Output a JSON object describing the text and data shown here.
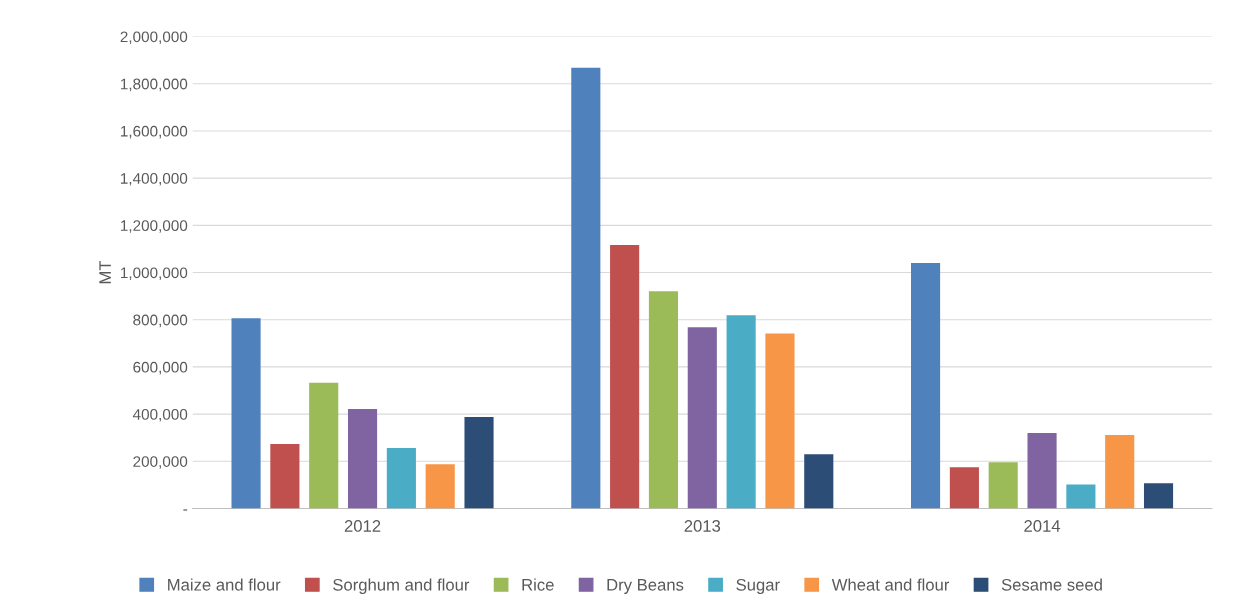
{
  "chart_data": {
    "type": "bar",
    "ylabel": "MT",
    "categories": [
      "2012",
      "2013",
      "2014"
    ],
    "series": [
      {
        "name": "Maize and flour",
        "color": "#4f81bd",
        "values": [
          806000,
          1868000,
          1040000
        ]
      },
      {
        "name": "Sorghum and flour",
        "color": "#c0504d",
        "values": [
          273000,
          1117000,
          175000
        ]
      },
      {
        "name": "Rice",
        "color": "#9bbb59",
        "values": [
          533000,
          921000,
          196000
        ]
      },
      {
        "name": "Dry Beans",
        "color": "#8064a2",
        "values": [
          422000,
          768000,
          320000
        ]
      },
      {
        "name": "Sugar",
        "color": "#4bacc6",
        "values": [
          256000,
          819000,
          102000
        ]
      },
      {
        "name": "Wheat and flour",
        "color": "#f79646",
        "values": [
          188000,
          742000,
          311000
        ]
      },
      {
        "name": "Sesame seed",
        "color": "#2c4d75",
        "values": [
          388000,
          230000,
          107000
        ]
      }
    ],
    "ylim": [
      0,
      2000000
    ],
    "yticks": [
      {
        "value": 0,
        "label": "-"
      },
      {
        "value": 200000,
        "label": "200,000"
      },
      {
        "value": 400000,
        "label": "400,000"
      },
      {
        "value": 600000,
        "label": "600,000"
      },
      {
        "value": 800000,
        "label": "800,000"
      },
      {
        "value": 1000000,
        "label": "1,000,000"
      },
      {
        "value": 1200000,
        "label": "1,200,000"
      },
      {
        "value": 1400000,
        "label": "1,400,000"
      },
      {
        "value": 1600000,
        "label": "1,600,000"
      },
      {
        "value": 1800000,
        "label": "1,800,000"
      },
      {
        "value": 2000000,
        "label": "2,000,000"
      }
    ],
    "grid": "y",
    "legend": "bottom"
  }
}
